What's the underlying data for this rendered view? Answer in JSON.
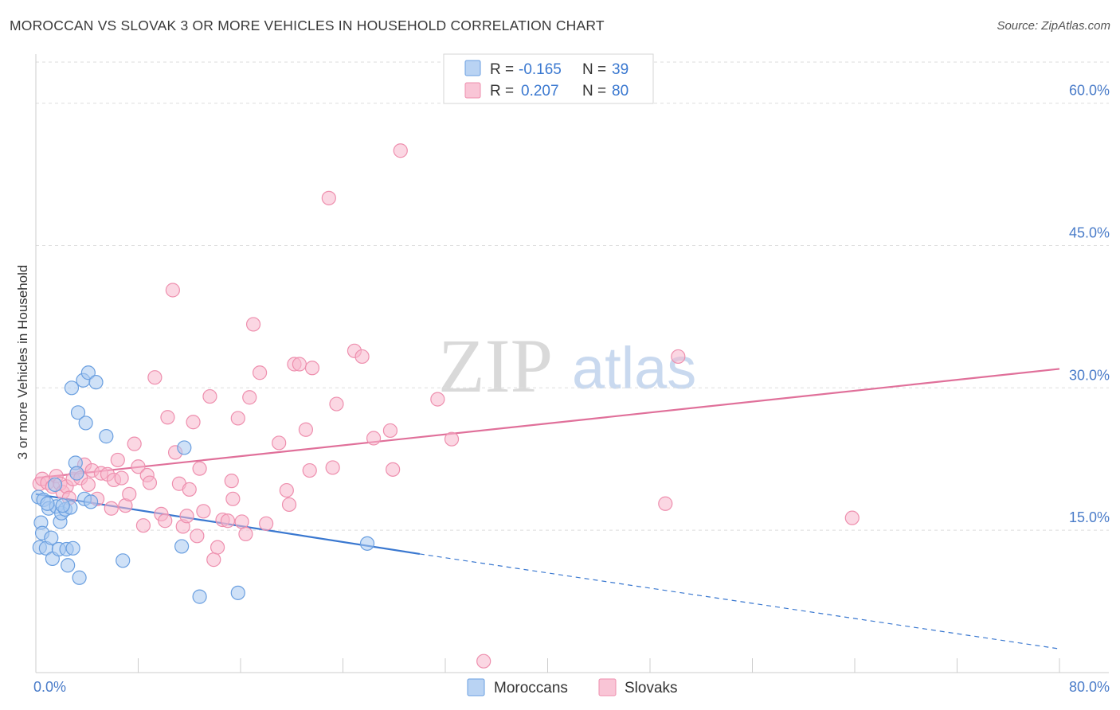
{
  "header": {
    "title": "MOROCCAN VS SLOVAK 3 OR MORE VEHICLES IN HOUSEHOLD CORRELATION CHART",
    "source": "Source: ZipAtlas.com"
  },
  "watermark": {
    "zip": "ZIP",
    "atlas": "atlas"
  },
  "legend_top": {
    "rows": [
      {
        "r_label": "R =",
        "r_value": "-0.165",
        "n_label": "N =",
        "n_value": "39",
        "color": "#a8c8f0"
      },
      {
        "r_label": "R =",
        "r_value": "0.207",
        "n_label": "N =",
        "n_value": "80",
        "color": "#f7b7cc"
      }
    ]
  },
  "legend_bottom": {
    "items": [
      {
        "label": "Moroccans",
        "color": "#a8c8f0"
      },
      {
        "label": "Slovaks",
        "color": "#f7b7cc"
      }
    ]
  },
  "chart_data": {
    "type": "scatter",
    "title": "MOROCCAN VS SLOVAK 3 OR MORE VEHICLES IN HOUSEHOLD CORRELATION CHART",
    "xlabel": "",
    "ylabel": "3 or more Vehicles in Household",
    "xlim": [
      0,
      80
    ],
    "ylim": [
      0,
      65
    ],
    "x_tick_labels": [
      {
        "value": 0,
        "label": "0.0%"
      },
      {
        "value": 80,
        "label": "80.0%"
      }
    ],
    "y_tick_labels": [
      {
        "value": 15,
        "label": "15.0%"
      },
      {
        "value": 30,
        "label": "30.0%"
      },
      {
        "value": 45,
        "label": "45.0%"
      },
      {
        "value": 60,
        "label": "60.0%"
      }
    ],
    "x_minor_ticks": [
      0,
      8,
      16,
      24,
      32,
      40,
      48,
      56,
      64,
      72,
      80
    ],
    "grid": true,
    "legend_placement": "top-center",
    "series": [
      {
        "name": "Moroccans",
        "color": "#a8c8f0",
        "stroke": "#6a9fe0",
        "line_color": "#3a78d0",
        "trend": {
          "x0": 0,
          "y0": 18.8,
          "x1": 30,
          "y1": 12.5,
          "dash_to_x": 80,
          "dash_to_y": 2.5
        },
        "points": [
          [
            0.2,
            18.5
          ],
          [
            0.3,
            13.2
          ],
          [
            0.4,
            15.8
          ],
          [
            0.5,
            14.7
          ],
          [
            0.6,
            18.2
          ],
          [
            0.8,
            13.1
          ],
          [
            1.0,
            17.3
          ],
          [
            1.2,
            14.2
          ],
          [
            1.3,
            12.0
          ],
          [
            1.5,
            19.8
          ],
          [
            1.6,
            17.5
          ],
          [
            1.8,
            13.0
          ],
          [
            1.9,
            15.9
          ],
          [
            2.0,
            16.8
          ],
          [
            2.3,
            17.2
          ],
          [
            2.4,
            13.0
          ],
          [
            2.5,
            11.3
          ],
          [
            2.7,
            17.4
          ],
          [
            2.8,
            30.0
          ],
          [
            2.9,
            13.1
          ],
          [
            3.1,
            22.1
          ],
          [
            3.2,
            21.0
          ],
          [
            3.3,
            27.4
          ],
          [
            3.4,
            10.0
          ],
          [
            3.7,
            30.8
          ],
          [
            3.8,
            18.3
          ],
          [
            3.9,
            26.3
          ],
          [
            4.1,
            31.6
          ],
          [
            4.3,
            18.0
          ],
          [
            4.7,
            30.6
          ],
          [
            5.5,
            24.9
          ],
          [
            6.8,
            11.8
          ],
          [
            11.4,
            13.3
          ],
          [
            11.6,
            23.7
          ],
          [
            12.8,
            8.0
          ],
          [
            15.8,
            8.4
          ],
          [
            25.9,
            13.6
          ],
          [
            0.9,
            17.8
          ],
          [
            2.1,
            17.6
          ]
        ]
      },
      {
        "name": "Slovaks",
        "color": "#f7b7cc",
        "stroke": "#ee8fae",
        "line_color": "#e0709a",
        "trend": {
          "x0": 0,
          "y0": 20.5,
          "x1": 80,
          "y1": 32.0
        },
        "points": [
          [
            0.3,
            19.9
          ],
          [
            0.5,
            20.4
          ],
          [
            0.9,
            20.0
          ],
          [
            1.3,
            19.6
          ],
          [
            1.6,
            20.7
          ],
          [
            1.9,
            19.9
          ],
          [
            2.1,
            19.0
          ],
          [
            2.4,
            19.6
          ],
          [
            2.6,
            18.4
          ],
          [
            2.9,
            20.4
          ],
          [
            3.2,
            21.0
          ],
          [
            3.5,
            20.5
          ],
          [
            3.8,
            21.9
          ],
          [
            4.1,
            19.8
          ],
          [
            4.4,
            21.3
          ],
          [
            4.8,
            18.3
          ],
          [
            5.1,
            21.0
          ],
          [
            5.6,
            20.9
          ],
          [
            5.9,
            17.3
          ],
          [
            6.1,
            20.3
          ],
          [
            6.4,
            22.4
          ],
          [
            6.7,
            20.5
          ],
          [
            7.0,
            17.6
          ],
          [
            7.3,
            18.8
          ],
          [
            7.7,
            24.1
          ],
          [
            8.0,
            21.7
          ],
          [
            8.4,
            15.5
          ],
          [
            8.7,
            20.8
          ],
          [
            8.9,
            20.0
          ],
          [
            9.3,
            31.1
          ],
          [
            9.8,
            16.7
          ],
          [
            10.1,
            16.0
          ],
          [
            10.3,
            26.9
          ],
          [
            10.7,
            40.3
          ],
          [
            10.9,
            23.2
          ],
          [
            11.2,
            19.9
          ],
          [
            11.5,
            15.4
          ],
          [
            11.8,
            16.5
          ],
          [
            12.0,
            19.3
          ],
          [
            12.3,
            26.4
          ],
          [
            12.6,
            14.4
          ],
          [
            12.8,
            21.5
          ],
          [
            13.1,
            17.0
          ],
          [
            13.6,
            29.1
          ],
          [
            13.9,
            11.9
          ],
          [
            14.2,
            13.2
          ],
          [
            14.6,
            16.1
          ],
          [
            15.0,
            16.0
          ],
          [
            15.3,
            20.2
          ],
          [
            15.4,
            18.3
          ],
          [
            15.8,
            26.8
          ],
          [
            16.1,
            15.9
          ],
          [
            16.4,
            14.6
          ],
          [
            16.7,
            29.0
          ],
          [
            17.0,
            36.7
          ],
          [
            17.5,
            31.6
          ],
          [
            18.0,
            15.7
          ],
          [
            19.0,
            24.2
          ],
          [
            19.6,
            19.2
          ],
          [
            19.8,
            17.7
          ],
          [
            20.2,
            32.5
          ],
          [
            20.6,
            32.5
          ],
          [
            21.1,
            25.6
          ],
          [
            21.4,
            21.3
          ],
          [
            21.6,
            32.1
          ],
          [
            22.9,
            50.0
          ],
          [
            23.2,
            21.6
          ],
          [
            23.5,
            28.3
          ],
          [
            24.9,
            33.9
          ],
          [
            25.5,
            33.3
          ],
          [
            26.4,
            24.7
          ],
          [
            27.7,
            25.5
          ],
          [
            27.9,
            21.4
          ],
          [
            28.5,
            55.0
          ],
          [
            31.4,
            28.8
          ],
          [
            32.5,
            24.6
          ],
          [
            35.0,
            1.2
          ],
          [
            49.2,
            17.8
          ],
          [
            50.2,
            33.3
          ],
          [
            63.8,
            16.3
          ]
        ]
      }
    ]
  }
}
